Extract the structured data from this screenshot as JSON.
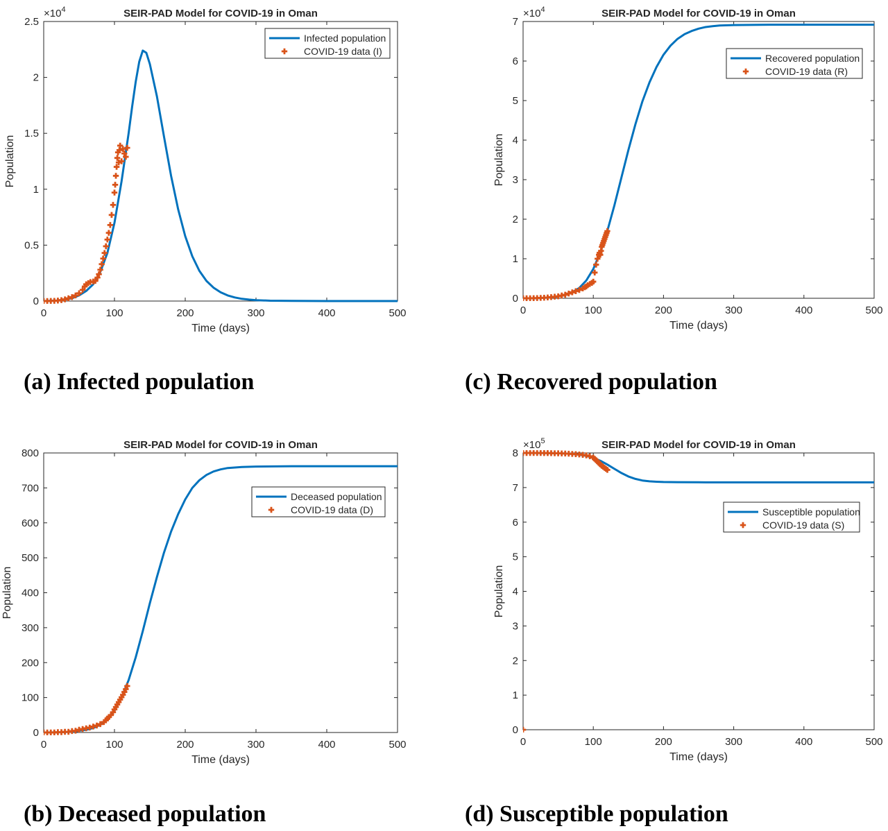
{
  "captions": {
    "a": "(a) Infected population",
    "b": "(b) Deceased population",
    "c": "(c) Recovered population",
    "d": "(d) Susceptible population"
  },
  "colors": {
    "model": "#0072BD",
    "data": "#D95319",
    "axis": "#262626"
  },
  "chart_data": [
    {
      "id": "a",
      "type": "line",
      "title": "SEIR-PAD Model for COVID-19 in Oman",
      "xlabel": "Time (days)",
      "ylabel": "Population",
      "xlim": [
        0,
        500
      ],
      "ylim": [
        0,
        25000
      ],
      "exponent_label": "×10",
      "exponent": "4",
      "xticks": [
        0,
        100,
        200,
        300,
        400,
        500
      ],
      "xtick_labels": [
        "0",
        "100",
        "200",
        "300",
        "400",
        "500"
      ],
      "yticks": [
        0,
        5000,
        10000,
        15000,
        20000,
        25000
      ],
      "ytick_labels": [
        "0",
        "0.5",
        "1",
        "1.5",
        "2",
        "2.5"
      ],
      "legend_position": "top-right",
      "series": [
        {
          "name": "Infected population",
          "kind": "line",
          "x": [
            0,
            20,
            40,
            50,
            60,
            70,
            80,
            90,
            100,
            110,
            120,
            125,
            130,
            135,
            140,
            145,
            150,
            160,
            170,
            180,
            190,
            200,
            210,
            220,
            230,
            240,
            250,
            260,
            270,
            280,
            290,
            300,
            320,
            350,
            400,
            450,
            500
          ],
          "y": [
            0,
            50,
            250,
            500,
            900,
            1500,
            2600,
            4300,
            7000,
            10700,
            15000,
            17400,
            19600,
            21400,
            22400,
            22200,
            21200,
            18300,
            14700,
            11200,
            8200,
            5800,
            4000,
            2700,
            1800,
            1200,
            780,
            500,
            320,
            200,
            130,
            80,
            30,
            10,
            0,
            0,
            0
          ]
        },
        {
          "name": "COVID-19 data (I)",
          "kind": "scatter",
          "x": [
            0,
            5,
            10,
            15,
            20,
            25,
            30,
            35,
            40,
            45,
            50,
            55,
            58,
            60,
            63,
            66,
            70,
            73,
            76,
            78,
            80,
            82,
            84,
            86,
            88,
            90,
            92,
            94,
            96,
            98,
            100,
            101,
            102,
            103,
            104,
            105,
            106,
            107,
            108,
            110,
            112,
            114,
            116,
            118
          ],
          "y": [
            0,
            0,
            10,
            20,
            40,
            80,
            150,
            250,
            350,
            500,
            700,
            1000,
            1300,
            1500,
            1600,
            1700,
            1750,
            1800,
            2100,
            2400,
            2800,
            3300,
            3800,
            4300,
            4900,
            5500,
            6100,
            6800,
            7700,
            8600,
            9700,
            10400,
            11200,
            12000,
            12800,
            13300,
            12400,
            13500,
            13900,
            12500,
            13600,
            13200,
            12900,
            13700
          ]
        }
      ]
    },
    {
      "id": "b",
      "type": "line",
      "title": "SEIR-PAD Model for COVID-19 in Oman",
      "xlabel": "Time (days)",
      "ylabel": "Population",
      "xlim": [
        0,
        500
      ],
      "ylim": [
        0,
        800
      ],
      "exponent_label": "",
      "exponent": "",
      "xticks": [
        0,
        100,
        200,
        300,
        400,
        500
      ],
      "xtick_labels": [
        "0",
        "100",
        "200",
        "300",
        "400",
        "500"
      ],
      "yticks": [
        0,
        100,
        200,
        300,
        400,
        500,
        600,
        700,
        800
      ],
      "ytick_labels": [
        "0",
        "100",
        "200",
        "300",
        "400",
        "500",
        "600",
        "700",
        "800"
      ],
      "legend_position": "upper-right",
      "series": [
        {
          "name": "Deceased population",
          "kind": "line",
          "x": [
            0,
            20,
            40,
            60,
            70,
            80,
            90,
            100,
            110,
            120,
            130,
            140,
            150,
            160,
            170,
            180,
            190,
            200,
            210,
            220,
            230,
            240,
            250,
            260,
            280,
            300,
            350,
            400,
            450,
            500
          ],
          "y": [
            0,
            0.5,
            2,
            8,
            13,
            22,
            37,
            62,
            100,
            150,
            215,
            290,
            370,
            445,
            515,
            575,
            625,
            667,
            700,
            722,
            737,
            747,
            753,
            757,
            760,
            761,
            762,
            762,
            762,
            762
          ]
        },
        {
          "name": "COVID-19 data (D)",
          "kind": "scatter",
          "x": [
            0,
            5,
            10,
            15,
            20,
            25,
            30,
            35,
            40,
            45,
            50,
            55,
            60,
            65,
            70,
            75,
            80,
            85,
            88,
            90,
            92,
            95,
            98,
            100,
            102,
            104,
            106,
            108,
            110,
            112,
            114,
            116,
            118
          ],
          "y": [
            0,
            0,
            0,
            0,
            1,
            1,
            2,
            2,
            4,
            5,
            8,
            10,
            12,
            14,
            17,
            20,
            24,
            30,
            35,
            40,
            44,
            50,
            58,
            66,
            73,
            80,
            87,
            94,
            101,
            108,
            116,
            124,
            133
          ]
        }
      ]
    },
    {
      "id": "c",
      "type": "line",
      "title": "SEIR-PAD Model for COVID-19 in Oman",
      "xlabel": "Time (days)",
      "ylabel": "Population",
      "xlim": [
        0,
        500
      ],
      "ylim": [
        0,
        70000
      ],
      "exponent_label": "×10",
      "exponent": "4",
      "xticks": [
        0,
        100,
        200,
        300,
        400,
        500
      ],
      "xtick_labels": [
        "0",
        "100",
        "200",
        "300",
        "400",
        "500"
      ],
      "yticks": [
        0,
        10000,
        20000,
        30000,
        40000,
        50000,
        60000,
        70000
      ],
      "ytick_labels": [
        "0",
        "1",
        "2",
        "3",
        "4",
        "5",
        "6",
        "7"
      ],
      "legend_position": "upper-right",
      "series": [
        {
          "name": "Recovered population",
          "kind": "line",
          "x": [
            0,
            20,
            40,
            60,
            70,
            80,
            90,
            100,
            110,
            120,
            130,
            140,
            150,
            160,
            170,
            180,
            190,
            200,
            210,
            220,
            230,
            240,
            250,
            260,
            270,
            280,
            300,
            350,
            400,
            500
          ],
          "y": [
            0,
            20,
            200,
            800,
            1500,
            2600,
            4500,
            7400,
            11600,
            17000,
            23500,
            30500,
            37500,
            44000,
            49800,
            54600,
            58500,
            61600,
            63900,
            65600,
            66800,
            67600,
            68200,
            68600,
            68800,
            69000,
            69100,
            69200,
            69200,
            69200
          ]
        },
        {
          "name": "COVID-19 data (R)",
          "kind": "scatter",
          "x": [
            0,
            5,
            10,
            15,
            20,
            25,
            30,
            35,
            40,
            45,
            50,
            55,
            60,
            65,
            70,
            75,
            80,
            85,
            88,
            90,
            92,
            95,
            98,
            100,
            102,
            104,
            106,
            108,
            109,
            110,
            111,
            112,
            113,
            114,
            115,
            116,
            117,
            118,
            119,
            120
          ],
          "y": [
            0,
            0,
            10,
            30,
            60,
            100,
            150,
            200,
            300,
            400,
            500,
            700,
            900,
            1200,
            1500,
            1800,
            2100,
            2500,
            2800,
            3000,
            3300,
            3600,
            3900,
            4200,
            6500,
            8500,
            10000,
            11000,
            11500,
            11000,
            12000,
            13000,
            13500,
            14000,
            14500,
            15000,
            15500,
            16000,
            16500,
            17000
          ]
        }
      ]
    },
    {
      "id": "d",
      "type": "line",
      "title": "SEIR-PAD Model for COVID-19 in Oman",
      "xlabel": "Time (days)",
      "ylabel": "Population",
      "xlim": [
        0,
        500
      ],
      "ylim": [
        0,
        800000
      ],
      "exponent_label": "×10",
      "exponent": "5",
      "xticks": [
        0,
        100,
        200,
        300,
        400,
        500
      ],
      "xtick_labels": [
        "0",
        "100",
        "200",
        "300",
        "400",
        "500"
      ],
      "yticks": [
        0,
        100000,
        200000,
        300000,
        400000,
        500000,
        600000,
        700000,
        800000
      ],
      "ytick_labels": [
        "0",
        "1",
        "2",
        "3",
        "4",
        "5",
        "6",
        "7",
        "8"
      ],
      "legend_position": "upper-right",
      "series": [
        {
          "name": "Susceptible population",
          "kind": "line",
          "x": [
            0,
            20,
            40,
            60,
            70,
            80,
            90,
            100,
            110,
            120,
            130,
            140,
            150,
            160,
            170,
            180,
            190,
            200,
            220,
            250,
            300,
            400,
            500
          ],
          "y": [
            800000,
            799800,
            799500,
            798500,
            797200,
            795000,
            791500,
            786000,
            777500,
            766500,
            754000,
            742000,
            732000,
            725000,
            720500,
            718000,
            716800,
            716000,
            715500,
            715200,
            715000,
            715000,
            715000
          ]
        },
        {
          "name": "COVID-19 data (S)",
          "kind": "scatter",
          "x": [
            0,
            0,
            5,
            10,
            15,
            20,
            25,
            30,
            35,
            40,
            45,
            50,
            55,
            60,
            65,
            70,
            75,
            80,
            85,
            90,
            95,
            100,
            102,
            104,
            106,
            108,
            110,
            112,
            114,
            116,
            118,
            120
          ],
          "y": [
            0,
            800000,
            800000,
            800000,
            800000,
            799900,
            799800,
            799700,
            799600,
            799400,
            799200,
            799000,
            798700,
            798300,
            797800,
            797200,
            796500,
            795600,
            794500,
            793000,
            790500,
            786500,
            783000,
            779000,
            775000,
            771000,
            767000,
            763000,
            760000,
            757000,
            754000,
            751000
          ]
        }
      ]
    }
  ]
}
